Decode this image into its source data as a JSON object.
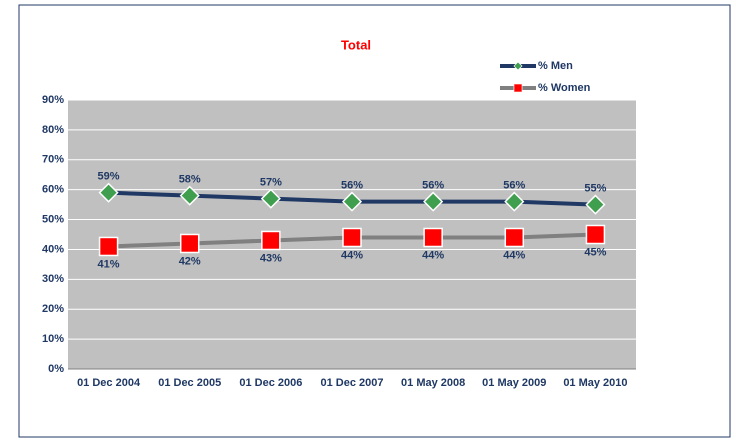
{
  "chart_data": {
    "type": "line",
    "title": "Total",
    "categories": [
      "01 Dec 2004",
      "01 Dec 2005",
      "01 Dec 2006",
      "01 Dec 2007",
      "01 May 2008",
      "01 May 2009",
      "01 May 2010"
    ],
    "series": [
      {
        "name": "% Men",
        "color": "#1f3864",
        "marker_color": "#3f9f4f",
        "marker": "diamond",
        "values": [
          59,
          58,
          57,
          56,
          56,
          56,
          55
        ],
        "value_labels": [
          "59%",
          "58%",
          "57%",
          "56%",
          "56%",
          "56%",
          "55%"
        ]
      },
      {
        "name": "% Women",
        "color": "#808080",
        "marker_color": "#ff0000",
        "marker": "square",
        "values": [
          41,
          42,
          43,
          44,
          44,
          44,
          45
        ],
        "value_labels": [
          "41%",
          "42%",
          "43%",
          "44%",
          "44%",
          "44%",
          "45%"
        ]
      }
    ],
    "ylim": [
      0,
      90
    ],
    "yticks": [
      {
        "value": 0,
        "label": "0%"
      },
      {
        "value": 10,
        "label": "10%"
      },
      {
        "value": 20,
        "label": "20%"
      },
      {
        "value": 30,
        "label": "30%"
      },
      {
        "value": 40,
        "label": "40%"
      },
      {
        "value": 50,
        "label": "50%"
      },
      {
        "value": 60,
        "label": "60%"
      },
      {
        "value": 70,
        "label": "70%"
      },
      {
        "value": 80,
        "label": "80%"
      },
      {
        "value": 90,
        "label": "90%"
      }
    ],
    "grid": true,
    "legend": "top-right"
  }
}
